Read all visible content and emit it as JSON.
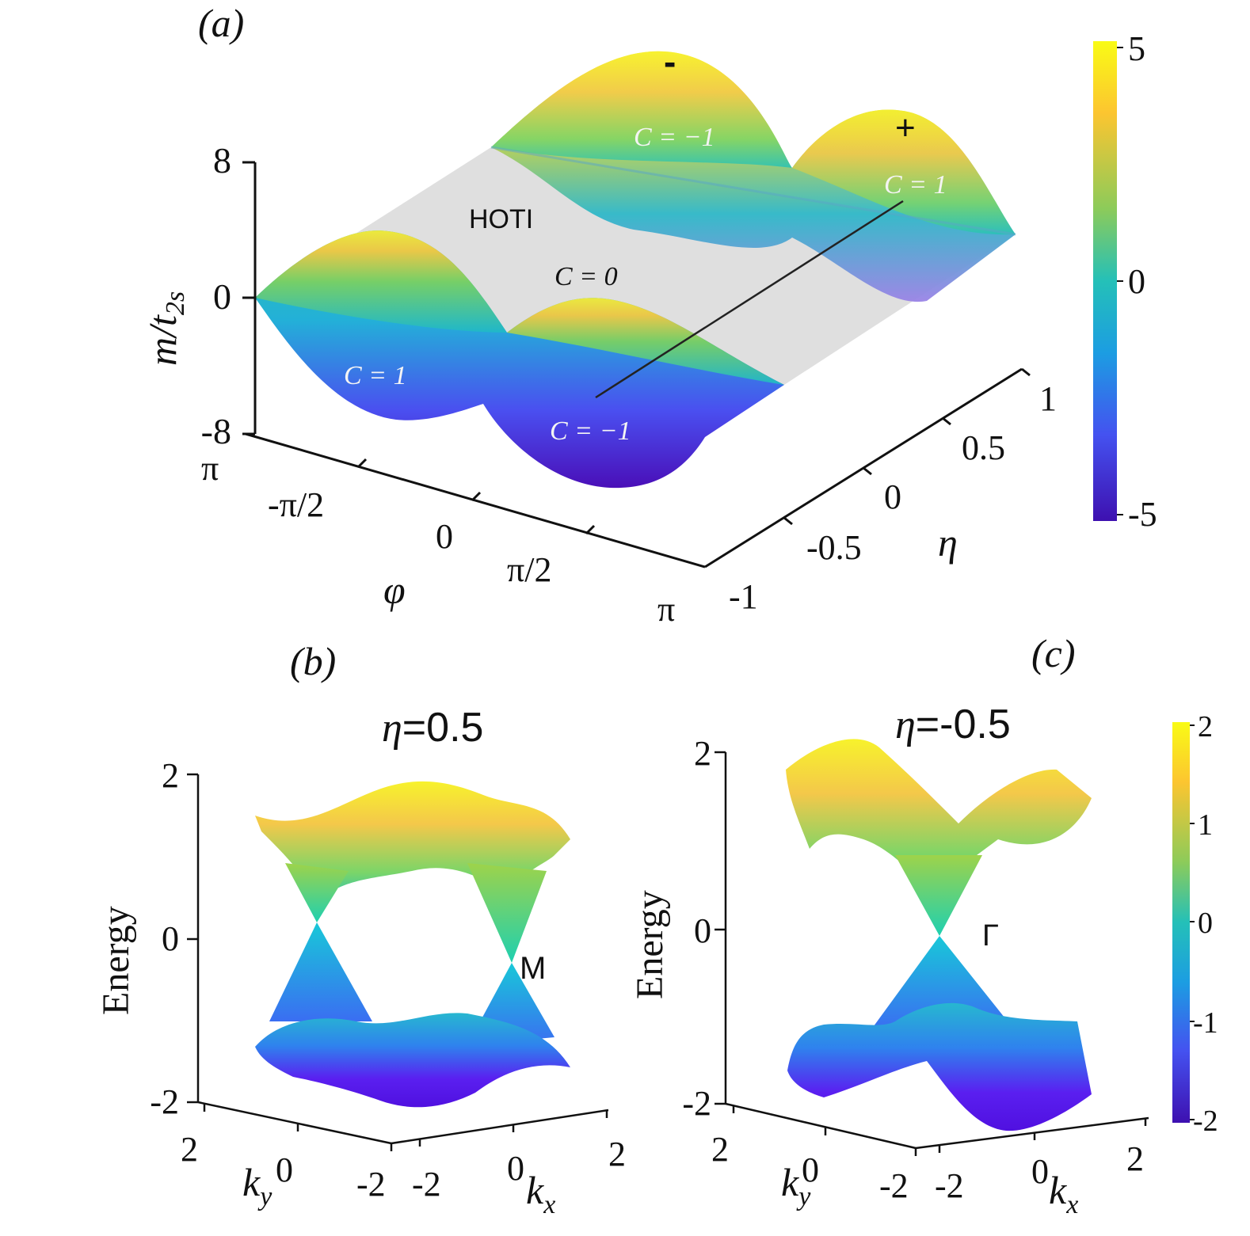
{
  "colors": {
    "viridis": [
      "#440154",
      "#3b0f9b",
      "#2d3fd0",
      "#1f7ed8",
      "#21b1c8",
      "#2dd0a0",
      "#7ad660",
      "#c7d83a",
      "#f1e22a",
      "#fcff3d"
    ],
    "parula": [
      "#3e26a8",
      "#4545f0",
      "#2d7ef7",
      "#13aedc",
      "#23c2b0",
      "#72cd6d",
      "#c9c42a",
      "#feba2c",
      "#f5e61e",
      "#f9fb15"
    ],
    "axis": "#111111",
    "grey_plane": "#dcdcdc"
  },
  "chart_data": [
    {
      "panel": "(a)",
      "type": "surface",
      "zlabel": "m/t_2s",
      "xlabel": "φ",
      "ylabel": "η",
      "z_ticks": [
        "8",
        "0",
        "-8"
      ],
      "z_range": [
        -8,
        8
      ],
      "x_ticks": [
        "π",
        "-π/2",
        "0",
        "π/2",
        "π"
      ],
      "y_ticks": [
        "-1",
        "-0.5",
        "0",
        "0.5",
        "1"
      ],
      "region_labels": [
        "HOTI",
        "C = 0",
        "C = 1",
        "C = −1",
        "C = −1",
        "C = 1"
      ],
      "markers": [
        "-",
        "+"
      ],
      "colorbar": {
        "ticks": [
          "5",
          "0",
          "-5"
        ],
        "range": [
          -5,
          5
        ]
      }
    },
    {
      "panel": "(b)",
      "type": "surface",
      "title": "η=0.5",
      "zlabel": "Energy",
      "z_ticks": [
        "2",
        "0",
        "-2"
      ],
      "z_range": [
        -2,
        2
      ],
      "ky_ticks": [
        "2",
        "0",
        "-2"
      ],
      "kx_ticks": [
        "-2",
        "0",
        "2"
      ],
      "xlabel": "k_x",
      "ylabel": "k_y",
      "annotation": "M"
    },
    {
      "panel": "(c)",
      "type": "surface",
      "title": "η=-0.5",
      "zlabel": "Energy",
      "z_ticks": [
        "2",
        "0",
        "-2"
      ],
      "z_range": [
        -2,
        2
      ],
      "ky_ticks": [
        "2",
        "0",
        "-2"
      ],
      "kx_ticks": [
        "-2",
        "0",
        "2"
      ],
      "xlabel": "k_x",
      "ylabel": "k_y",
      "annotation": "Γ",
      "colorbar": {
        "ticks": [
          "2",
          "1",
          "0",
          "-1",
          "-2"
        ],
        "range": [
          -2,
          2
        ]
      }
    }
  ]
}
